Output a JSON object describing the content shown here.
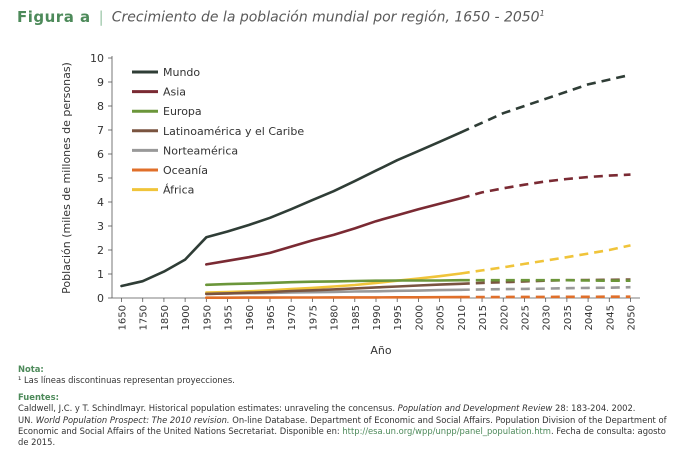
{
  "figure": {
    "label": "Figura a",
    "separator": "|",
    "title": "Crecimiento de la población mundial por región, 1650 - 2050",
    "title_sup": "1"
  },
  "chart_data": {
    "type": "line",
    "title": "Crecimiento de la población mundial por región, 1650 - 2050",
    "xlabel": "Año",
    "ylabel": "Población (miles de millones de personas)",
    "ylim": [
      0,
      10
    ],
    "yticks": [
      "0",
      "1",
      "2",
      "3",
      "4",
      "5",
      "6",
      "7",
      "8",
      "9",
      "10"
    ],
    "categories": [
      "1650",
      "1750",
      "1850",
      "1900",
      "1950",
      "1955",
      "1960",
      "1965",
      "1970",
      "1975",
      "1980",
      "1985",
      "1990",
      "1995",
      "2000",
      "2005",
      "2010",
      "2015",
      "2020",
      "2025",
      "2030",
      "2035",
      "2040",
      "2045",
      "2050"
    ],
    "projection_start": "2010",
    "legend_position": "top-left",
    "series": [
      {
        "name": "Mundo",
        "color": "#2f3d36",
        "values": [
          0.5,
          0.7,
          1.1,
          1.6,
          2.53,
          2.77,
          3.04,
          3.34,
          3.7,
          4.08,
          4.45,
          4.87,
          5.31,
          5.74,
          6.12,
          6.51,
          6.9,
          7.3,
          7.7,
          8.0,
          8.3,
          8.6,
          8.9,
          9.1,
          9.3
        ]
      },
      {
        "name": "Asia",
        "color": "#7a2a33",
        "values": [
          null,
          null,
          null,
          null,
          1.4,
          1.55,
          1.7,
          1.88,
          2.14,
          2.4,
          2.63,
          2.9,
          3.2,
          3.45,
          3.7,
          3.93,
          4.16,
          4.4,
          4.57,
          4.72,
          4.86,
          4.96,
          5.04,
          5.1,
          5.14
        ]
      },
      {
        "name": "Europa",
        "color": "#6b963a",
        "values": [
          null,
          null,
          null,
          null,
          0.55,
          0.58,
          0.6,
          0.63,
          0.66,
          0.68,
          0.69,
          0.71,
          0.72,
          0.73,
          0.73,
          0.73,
          0.74,
          0.74,
          0.74,
          0.74,
          0.74,
          0.74,
          0.73,
          0.72,
          0.72
        ]
      },
      {
        "name": "Latinoamérica y el Caribe",
        "color": "#7a5440",
        "values": [
          null,
          null,
          null,
          null,
          0.17,
          0.19,
          0.22,
          0.25,
          0.29,
          0.32,
          0.36,
          0.4,
          0.44,
          0.48,
          0.52,
          0.56,
          0.59,
          0.63,
          0.66,
          0.69,
          0.72,
          0.74,
          0.75,
          0.76,
          0.77
        ]
      },
      {
        "name": "Norteamérica",
        "color": "#999999",
        "values": [
          null,
          null,
          null,
          null,
          0.17,
          0.19,
          0.2,
          0.21,
          0.23,
          0.24,
          0.25,
          0.27,
          0.28,
          0.3,
          0.31,
          0.33,
          0.34,
          0.36,
          0.37,
          0.38,
          0.39,
          0.41,
          0.42,
          0.43,
          0.45
        ]
      },
      {
        "name": "Oceanía",
        "color": "#e06f2a",
        "values": [
          null,
          null,
          null,
          null,
          0.013,
          0.014,
          0.016,
          0.018,
          0.02,
          0.021,
          0.023,
          0.025,
          0.027,
          0.029,
          0.031,
          0.033,
          0.036,
          0.039,
          0.042,
          0.045,
          0.047,
          0.05,
          0.052,
          0.054,
          0.056
        ]
      },
      {
        "name": "África",
        "color": "#f0c43a",
        "values": [
          null,
          null,
          null,
          null,
          0.23,
          0.25,
          0.28,
          0.32,
          0.37,
          0.42,
          0.48,
          0.54,
          0.63,
          0.72,
          0.81,
          0.91,
          1.02,
          1.15,
          1.28,
          1.42,
          1.56,
          1.7,
          1.85,
          2.0,
          2.19
        ]
      }
    ]
  },
  "notes": {
    "heading": "Nota:",
    "footnote": "¹ Las líneas discontinuas representan proyecciones.",
    "sources_heading": "Fuentes:",
    "source1_a": "Caldwell, J.C. y T. Schindlmayr. Historical population estimates: unraveling the concensus.",
    "source1_italic": "Population and Development Review",
    "source1_b": "28: 183-204. 2002.",
    "source2_a": "UN.",
    "source2_italic": "World Population Prospect: The 2010 revision.",
    "source2_b": "On-line Database. Department of Economic and Social Affairs. Population Division of the Department of Economic and Social Affairs of the United Nations Secretariat. Disponible en:",
    "source2_link": "http://esa.un.org/wpp/unpp/panel_population.htm",
    "source2_c": ". Fecha de consulta: agosto de 2015."
  }
}
